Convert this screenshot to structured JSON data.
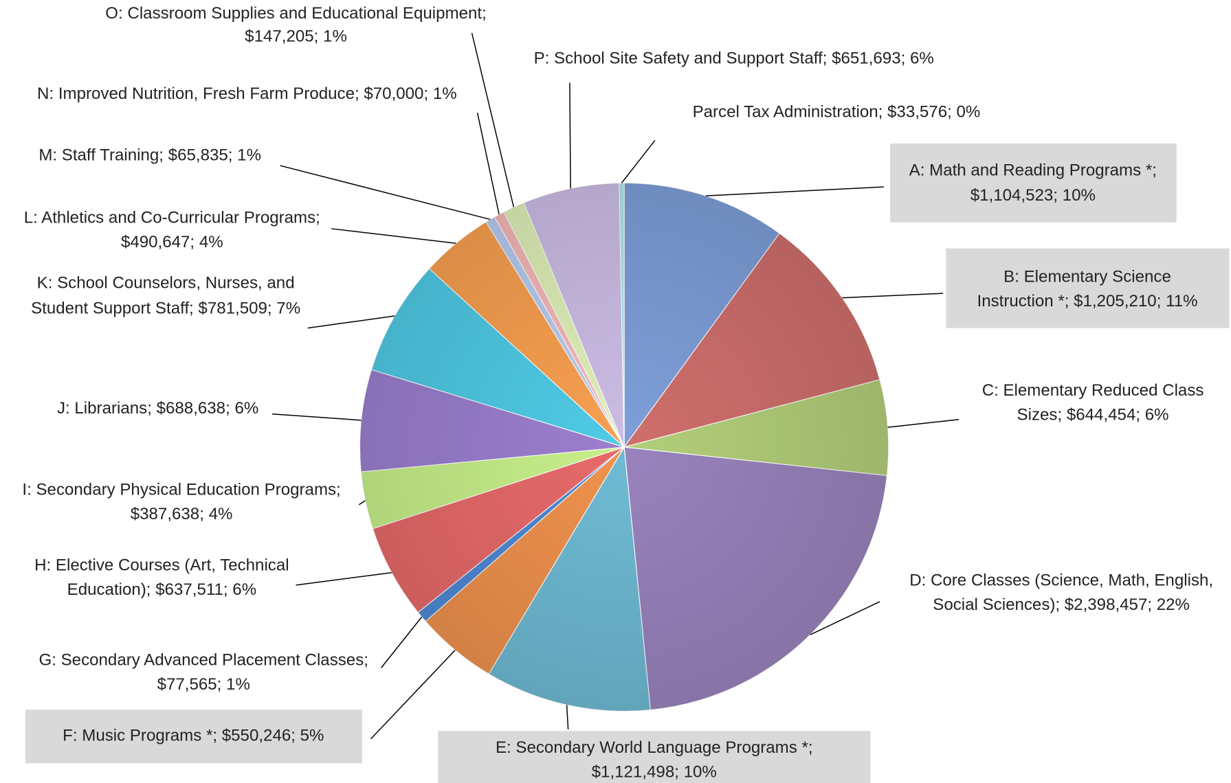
{
  "chart_data": {
    "type": "pie",
    "categories": [
      "A: Math and Reading Programs *",
      "B: Elementary Science Instruction *",
      "C: Elementary Reduced Class Sizes",
      "D: Core Classes (Science, Math, English, Social Sciences)",
      "E: Secondary World Language Programs *",
      "F: Music Programs *",
      "G: Secondary Advanced Placement Classes",
      "H: Elective Courses (Art, Technical Education)",
      "I: Secondary Physical Education Programs",
      "J: Librarians",
      "K: School Counselors, Nurses, and Student Support Staff",
      "L: Athletics and Co-Curricular Programs",
      "M: Staff Training",
      "N: Improved Nutrition, Fresh Farm Produce",
      "O: Classroom Supplies and Educational Equipment",
      "P: School Site Safety and Support Staff",
      "Parcel Tax Administration"
    ],
    "values": [
      1104523,
      1205210,
      644454,
      2398457,
      1121498,
      550246,
      77565,
      637511,
      387638,
      688638,
      781509,
      490647,
      65835,
      70000,
      147205,
      651693,
      33576
    ],
    "labels": [
      [
        "A: Math and Reading Programs *;",
        "$1,104,523; 10%"
      ],
      [
        "B: Elementary Science",
        "Instruction *; $1,205,210; 11%"
      ],
      [
        "C: Elementary Reduced Class",
        "Sizes; $644,454; 6%"
      ],
      [
        "D: Core Classes (Science, Math, English,",
        "Social Sciences); $2,398,457; 22%"
      ],
      [
        "E: Secondary World Language Programs *;",
        "$1,121,498; 10%"
      ],
      [
        "F: Music Programs *; $550,246; 5%"
      ],
      [
        "G: Secondary Advanced Placement Classes;",
        "$77,565; 1%"
      ],
      [
        "H: Elective Courses (Art, Technical",
        "Education); $637,511; 6%"
      ],
      [
        "I: Secondary Physical Education Programs;",
        "$387,638; 4%"
      ],
      [
        "J: Librarians; $688,638; 6%"
      ],
      [
        "K: School Counselors, Nurses, and",
        "Student Support Staff; $781,509; 7%"
      ],
      [
        "L: Athletics and Co-Curricular Programs;",
        "$490,647; 4%"
      ],
      [
        "M: Staff Training; $65,835; 1%"
      ],
      [
        "N: Improved Nutrition, Fresh Farm Produce; $70,000; 1%"
      ],
      [
        "O: Classroom Supplies and Educational Equipment;",
        "$147,205; 1%"
      ],
      [
        "P: School Site Safety and Support Staff; $651,693; 6%"
      ],
      [
        "Parcel Tax Administration; $33,576; 0%"
      ]
    ],
    "colors": [
      "#7e9fd9",
      "#cf6f6c",
      "#b3cf7a",
      "#9a83bd",
      "#6fbbd4",
      "#f0924e",
      "#4f8ad6",
      "#e86a6a",
      "#c8f08a",
      "#9b7fcf",
      "#4fcbe6",
      "#f9a050",
      "#b8ccf0",
      "#f5b8b8",
      "#dff0b8",
      "#cdbde6",
      "#b0e6f0"
    ]
  }
}
